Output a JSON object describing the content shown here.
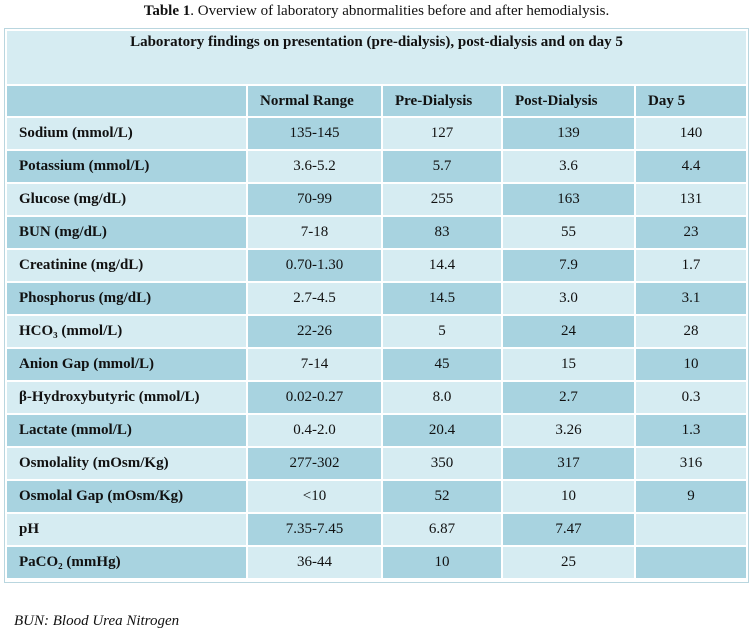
{
  "caption": {
    "label": "Table 1",
    "text": ". Overview of laboratory abnormalities before and after hemodialysis."
  },
  "table": {
    "title": "Laboratory findings on presentation (pre-dialysis), post-dialysis and on day 5",
    "headers": [
      "",
      "Normal Range",
      "Pre-Dialysis",
      "Post-Dialysis",
      "Day 5"
    ],
    "rows": [
      [
        "Sodium (mmol/L)",
        "135-145",
        "127",
        "139",
        "140"
      ],
      [
        "Potassium (mmol/L)",
        "3.6-5.2",
        "5.7",
        "3.6",
        "4.4"
      ],
      [
        "Glucose (mg/dL)",
        "70-99",
        "255",
        "163",
        "131"
      ],
      [
        "BUN (mg/dL)",
        "7-18",
        "83",
        "55",
        "23"
      ],
      [
        "Creatinine (mg/dL)",
        "0.70-1.30",
        "14.4",
        "7.9",
        "1.7"
      ],
      [
        "Phosphorus (mg/dL)",
        "2.7-4.5",
        "14.5",
        "3.0",
        "3.1"
      ],
      [
        "HCO₃ (mmol/L)",
        "22-26",
        "5",
        "24",
        "28"
      ],
      [
        "Anion Gap (mmol/L)",
        "7-14",
        "45",
        "15",
        "10"
      ],
      [
        "β-Hydroxybutyric (mmol/L)",
        "0.02-0.27",
        "8.0",
        "2.7",
        "0.3"
      ],
      [
        "Lactate (mmol/L)",
        "0.4-2.0",
        "20.4",
        "3.26",
        "1.3"
      ],
      [
        "Osmolality (mOsm/Kg)",
        "277-302",
        "350",
        "317",
        "316"
      ],
      [
        "Osmolal Gap (mOsm/Kg)",
        "<10",
        "52",
        "10",
        "9"
      ],
      [
        "pH",
        "7.35-7.45",
        "6.87",
        "7.47",
        ""
      ],
      [
        "PaCO₂ (mmHg)",
        "36-44",
        "10",
        "25",
        ""
      ]
    ]
  },
  "footnote": "BUN: Blood Urea Nitrogen"
}
